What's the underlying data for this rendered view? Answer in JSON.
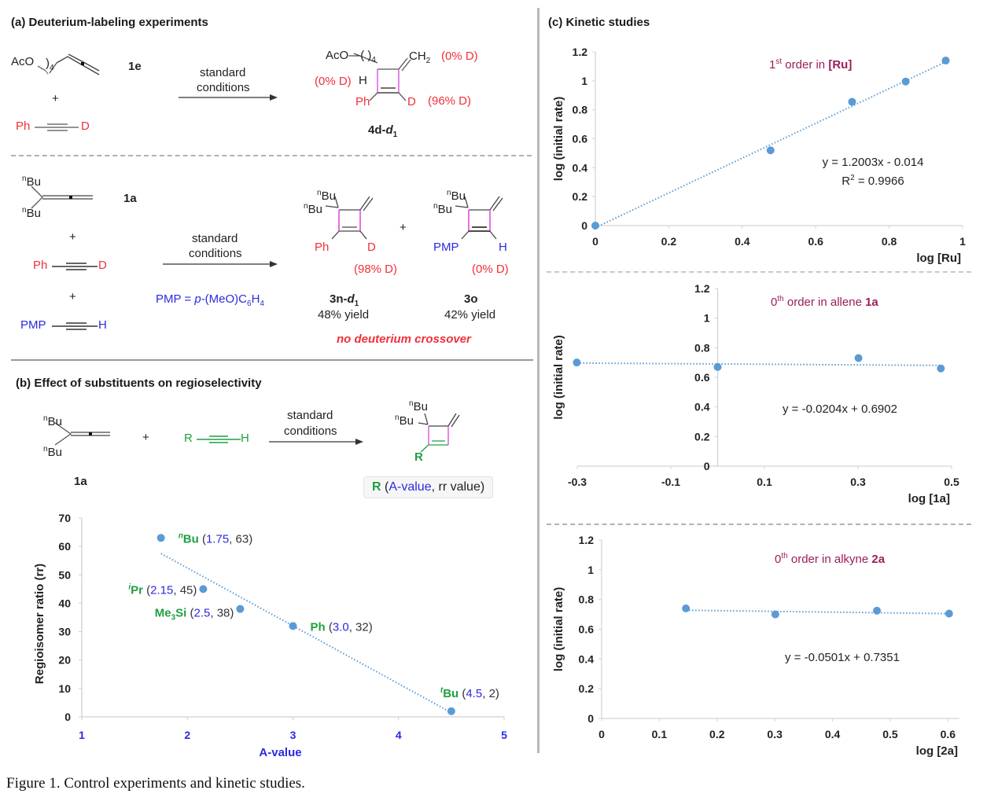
{
  "caption": "Figure 1. Control experiments and kinetic studies.",
  "colors": {
    "red": "#f0303a",
    "blue": "#2a2ae0",
    "green": "#1fa040",
    "maroon": "#9b1e5a",
    "point": "#5b9bd5",
    "magenta": "#e040e0"
  },
  "section_a": {
    "title": "(a) Deuterium-labeling experiments",
    "exp1": {
      "reactant1_label": "AcO",
      "reactant1_sub": "4",
      "reactant1_id": "1e",
      "plus": "+",
      "reactant2_left": "Ph",
      "reactant2_right": "D",
      "arrow_top": "standard",
      "arrow_bottom": "conditions",
      "product": {
        "aco": "AcO",
        "sub": "4",
        "ch2": "CH",
        "ch2_sub": "2",
        "ch2_label": "(0% D)",
        "h": "H",
        "h_label": "(0% D)",
        "ph": "Ph",
        "d": "D",
        "d_label": "(96% D)",
        "id": "4d-",
        "id_italic": "d",
        "id_sub": "1"
      }
    },
    "exp2": {
      "nbu_sup": "n",
      "nbu": "Bu",
      "reactant1_id": "1a",
      "plus": "+",
      "reactant2_left": "Ph",
      "reactant2_right": "D",
      "reactant3_left": "PMP",
      "reactant3_right": "H",
      "arrow_top": "standard",
      "arrow_bottom": "conditions",
      "pmp_def": "PMP = ",
      "pmp_def_p": "p",
      "pmp_def_rest": "-(MeO)C",
      "pmp_def_sub6": "6",
      "pmp_def_h": "H",
      "pmp_def_sub4": "4",
      "product1": {
        "ph": "Ph",
        "d": "D",
        "label": "(98% D)",
        "id": "3n-",
        "id_italic": "d",
        "id_sub": "1",
        "yield": "48% yield"
      },
      "product2": {
        "pmp": "PMP",
        "h": "H",
        "label": "(0% D)",
        "id": "3o",
        "yield": "42% yield"
      },
      "note": "no deuterium crossover"
    }
  },
  "section_b": {
    "title": "(b) Effect of substituents on regioselectivity",
    "nbu_sup": "n",
    "nbu": "Bu",
    "reactant1_id": "1a",
    "plus": "+",
    "alkyne_left": "R",
    "alkyne_right": "H",
    "arrow_top": "standard",
    "arrow_bottom": "conditions",
    "product_r": "R",
    "legend": {
      "r": "R",
      "open": " (",
      "avalue": "A-value",
      "rest": ", rr value)"
    }
  },
  "chart_data": [
    {
      "id": "regioselectivity",
      "type": "scatter",
      "title": "",
      "xlabel": "A-value",
      "ylabel": "Regioisomer ratio (rr)",
      "xlim": [
        1,
        5
      ],
      "ylim": [
        0,
        70
      ],
      "xticks": [
        1,
        2,
        3,
        4,
        5
      ],
      "yticks": [
        0,
        10,
        20,
        30,
        40,
        50,
        60,
        70
      ],
      "grid": false,
      "trendline": {
        "type": "linear",
        "style": "dotted",
        "x_range": [
          1.75,
          4.5
        ],
        "y_start": 57.5,
        "y_end": 1.5
      },
      "points": [
        {
          "label_sup": "n",
          "label": "Bu",
          "x": 1.75,
          "y": 63,
          "annot_x": "1.75",
          "annot_y": "63",
          "label_side": "right"
        },
        {
          "label_sup": "i",
          "label": "Pr",
          "x": 2.15,
          "y": 45,
          "annot_x": "2.15",
          "annot_y": "45",
          "label_side": "left"
        },
        {
          "label_sup": "",
          "label": "Me3Si",
          "x": 2.5,
          "y": 38,
          "annot_x": "2.5",
          "annot_y": "38",
          "label_side": "left"
        },
        {
          "label_sup": "",
          "label": "Ph",
          "x": 3.0,
          "y": 32,
          "annot_x": "3.0",
          "annot_y": "32",
          "label_side": "right"
        },
        {
          "label_sup": "t",
          "label": "Bu",
          "x": 4.5,
          "y": 2,
          "annot_x": "4.5",
          "annot_y": "2",
          "label_side": "above"
        }
      ]
    },
    {
      "id": "kinetics-ru",
      "type": "scatter",
      "section_title": "(c) Kinetic studies",
      "annotation_pre": "1",
      "annotation_sup": "st",
      "annotation_mid": " order in ",
      "annotation_bold": "[Ru]",
      "xlabel": "log [Ru]",
      "ylabel": "log (initial rate)",
      "xlim": [
        0,
        1
      ],
      "ylim": [
        0,
        1.2
      ],
      "xticks": [
        0,
        0.2,
        0.4,
        0.6,
        0.8,
        1
      ],
      "xtick_labels": [
        "0",
        "0.2",
        "0.4",
        "0.6",
        "0.8",
        "1"
      ],
      "yticks": [
        0,
        0.2,
        0.4,
        0.6,
        0.8,
        1,
        1.2
      ],
      "ytick_labels": [
        "0",
        "0.2",
        "0.4",
        "0.6",
        "0.8",
        "1",
        "1.2"
      ],
      "points": [
        {
          "x": 0,
          "y": 0
        },
        {
          "x": 0.477,
          "y": 0.52
        },
        {
          "x": 0.699,
          "y": 0.855
        },
        {
          "x": 0.845,
          "y": 0.995
        },
        {
          "x": 0.954,
          "y": 1.14
        }
      ],
      "fit": {
        "slope": 1.2003,
        "intercept": -0.014
      },
      "equation": "y = 1.2003x - 0.014",
      "r2_pre": "R",
      "r2_sup": "2",
      "r2_post": " = 0.9966"
    },
    {
      "id": "kinetics-allene",
      "type": "scatter",
      "annotation_pre": "0",
      "annotation_sup": "th",
      "annotation_mid": " order in allene ",
      "annotation_bold": "1a",
      "xlabel": "log [1a]",
      "ylabel": "log (initial rate)",
      "xlim": [
        -0.3,
        0.5
      ],
      "ylim": [
        0,
        1.2
      ],
      "xticks": [
        -0.3,
        -0.1,
        0.1,
        0.3,
        0.5
      ],
      "xtick_labels": [
        "-0.3",
        "-0.1",
        "0.1",
        "0.3",
        "0.5"
      ],
      "yticks": [
        0,
        0.2,
        0.4,
        0.6,
        0.8,
        1,
        1.2
      ],
      "ytick_labels": [
        "0",
        "0.2",
        "0.4",
        "0.6",
        "0.8",
        "1",
        "1.2"
      ],
      "points": [
        {
          "x": -0.301,
          "y": 0.7
        },
        {
          "x": 0.0,
          "y": 0.67
        },
        {
          "x": 0.301,
          "y": 0.73
        },
        {
          "x": 0.477,
          "y": 0.66
        }
      ],
      "fit": {
        "slope": -0.0204,
        "intercept": 0.6902
      },
      "equation": "y = -0.0204x + 0.6902"
    },
    {
      "id": "kinetics-alkyne",
      "type": "scatter",
      "annotation_pre": "0",
      "annotation_sup": "th",
      "annotation_mid": " order in alkyne ",
      "annotation_bold": "2a",
      "xlabel": "log [2a]",
      "ylabel": "log (initial rate)",
      "xlim": [
        0,
        0.62
      ],
      "ylim": [
        0,
        1.2
      ],
      "xticks": [
        0,
        0.1,
        0.2,
        0.3,
        0.4,
        0.5,
        0.6
      ],
      "xtick_labels": [
        "0",
        "0.1",
        "0.2",
        "0.3",
        "0.4",
        "0.5",
        "0.6"
      ],
      "yticks": [
        0,
        0.2,
        0.4,
        0.6,
        0.8,
        1,
        1.2
      ],
      "ytick_labels": [
        "0",
        "0.2",
        "0.4",
        "0.6",
        "0.8",
        "1",
        "1.2"
      ],
      "points": [
        {
          "x": 0.146,
          "y": 0.74
        },
        {
          "x": 0.301,
          "y": 0.7
        },
        {
          "x": 0.477,
          "y": 0.725
        },
        {
          "x": 0.602,
          "y": 0.705
        }
      ],
      "fit": {
        "slope": -0.0501,
        "intercept": 0.7351
      },
      "equation": "y = -0.0501x + 0.7351"
    }
  ]
}
